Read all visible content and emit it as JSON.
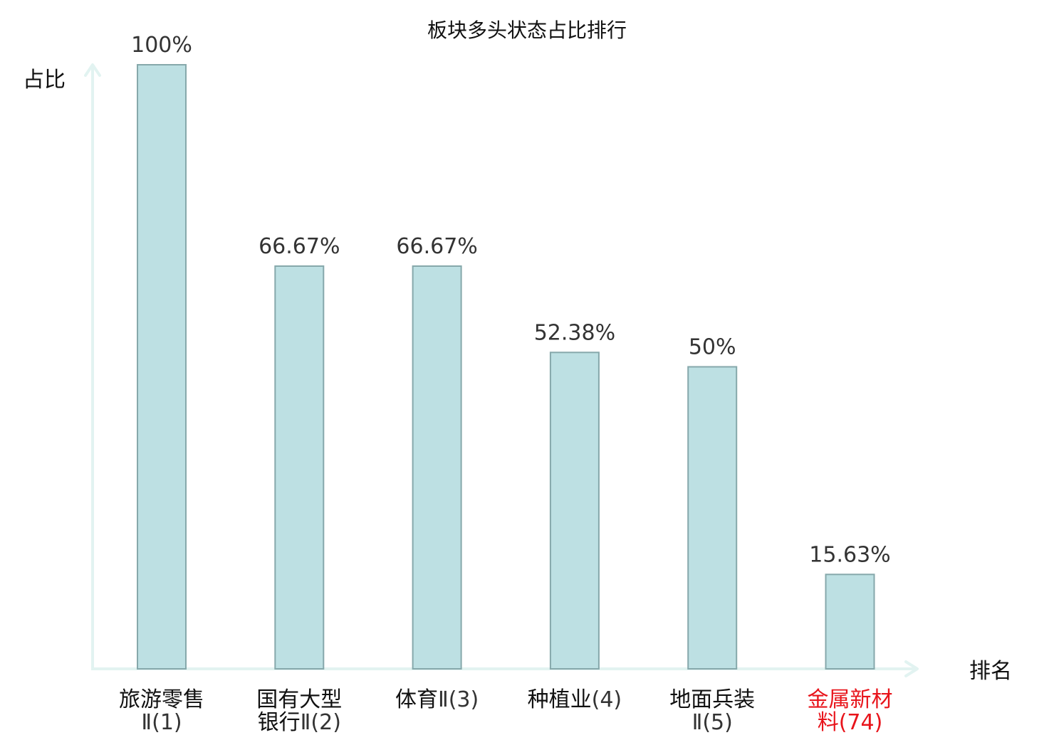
{
  "chart_data": {
    "type": "bar",
    "title": "板块多头状态占比排行",
    "ylabel": "占比",
    "xlabel": "排名",
    "ylim": [
      0,
      100
    ],
    "grid": false,
    "categories": [
      {
        "lines": [
          [
            "旅游零售",
            ""
          ],
          [
            "",
            "Ⅱ(1)"
          ]
        ],
        "highlight": false
      },
      {
        "lines": [
          [
            "国有大型",
            ""
          ],
          [
            "银行",
            "Ⅱ(2)"
          ]
        ],
        "highlight": false
      },
      {
        "lines": [
          [
            "体育",
            "Ⅱ(3)"
          ]
        ],
        "highlight": false
      },
      {
        "lines": [
          [
            "种植业",
            "(4)"
          ]
        ],
        "highlight": false
      },
      {
        "lines": [
          [
            "地面兵装",
            ""
          ],
          [
            "",
            "Ⅱ(5)"
          ]
        ],
        "highlight": false
      },
      {
        "lines": [
          [
            "金属新材",
            ""
          ],
          [
            "料",
            "(74)"
          ]
        ],
        "highlight": true
      }
    ],
    "values": [
      100,
      66.67,
      66.67,
      52.38,
      50,
      15.63
    ],
    "value_labels": [
      "100%",
      "66.67%",
      "66.67%",
      "52.38%",
      "50%",
      "15.63%"
    ],
    "colors": {
      "bar_fill": "#bde0e3",
      "bar_stroke": "#86a8ab",
      "axis": "#e2f3f1",
      "text": "#111111",
      "number_text": "#333333",
      "highlight": "#e8141b"
    }
  }
}
